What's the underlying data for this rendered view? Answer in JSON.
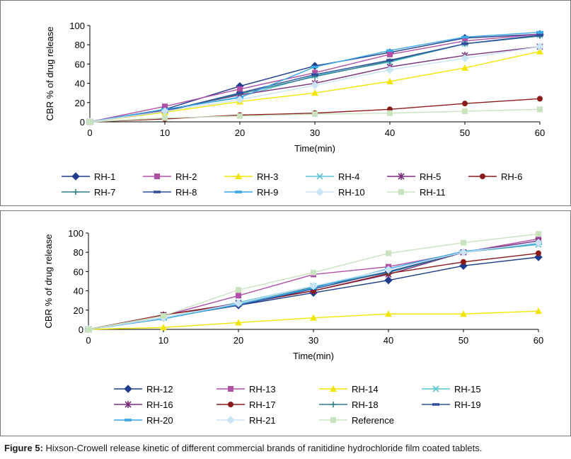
{
  "caption": {
    "label": "Figure 5:",
    "text": " Hixson-Crowell release kinetic of different commercial brands of ranitidine hydrochloride film coated tablets."
  },
  "chart_data": [
    {
      "type": "line",
      "title": "",
      "xlabel": "Time(min)",
      "ylabel": "CBR % of drug release",
      "x": [
        0,
        10,
        20,
        30,
        40,
        50,
        60
      ],
      "xticks": [
        "0",
        "10",
        "20",
        "30",
        "40",
        "50",
        "60"
      ],
      "yticks": [
        "0",
        "20",
        "40",
        "60",
        "80",
        "100"
      ],
      "xlim": [
        0,
        60
      ],
      "ylim": [
        0,
        100
      ],
      "grid": false,
      "legend": "bottom",
      "series": [
        {
          "name": "RH-1",
          "color": "#1f3c8c",
          "marker": "diamond",
          "values": [
            0,
            13,
            37,
            58,
            72,
            87,
            91
          ]
        },
        {
          "name": "RH-2",
          "color": "#b04fa6",
          "marker": "square",
          "values": [
            0,
            16,
            34,
            51,
            70,
            84,
            91
          ]
        },
        {
          "name": "RH-3",
          "color": "#f2e600",
          "marker": "triangle",
          "values": [
            0,
            10,
            21,
            30,
            42,
            56,
            73
          ]
        },
        {
          "name": "RH-4",
          "color": "#5fc3d6",
          "marker": "x",
          "values": [
            0,
            12,
            26,
            48,
            62,
            81,
            90
          ]
        },
        {
          "name": "RH-5",
          "color": "#7a2f7f",
          "marker": "star",
          "values": [
            0,
            12,
            28,
            40,
            57,
            69,
            78
          ]
        },
        {
          "name": "RH-6",
          "color": "#8b1a1a",
          "marker": "circle",
          "values": [
            0,
            3,
            7,
            9,
            13,
            19,
            24
          ]
        },
        {
          "name": "RH-7",
          "color": "#2d7f8a",
          "marker": "plus",
          "values": [
            0,
            11,
            29,
            47,
            63,
            81,
            89
          ]
        },
        {
          "name": "RH-8",
          "color": "#2f4f9c",
          "marker": "dash",
          "values": [
            0,
            11,
            30,
            49,
            64,
            81,
            90
          ]
        },
        {
          "name": "RH-9",
          "color": "#3aa7e8",
          "marker": "dash",
          "values": [
            0,
            13,
            25,
            57,
            74,
            88,
            93
          ]
        },
        {
          "name": "RH-10",
          "color": "#c9e4f5",
          "marker": "diamond",
          "values": [
            0,
            11,
            23,
            38,
            54,
            66,
            78
          ]
        },
        {
          "name": "RH-11",
          "color": "#c9e3bf",
          "marker": "square",
          "values": [
            0,
            4,
            6,
            8,
            9,
            11,
            13
          ]
        }
      ]
    },
    {
      "type": "line",
      "title": "",
      "xlabel": "Time(min)",
      "ylabel": "CBR % of drug release",
      "x": [
        0,
        10,
        20,
        30,
        40,
        50,
        60
      ],
      "xticks": [
        "0",
        "10",
        "20",
        "30",
        "40",
        "50",
        "60"
      ],
      "yticks": [
        "0",
        "20",
        "40",
        "60",
        "80",
        "100"
      ],
      "xlim": [
        0,
        60
      ],
      "ylim": [
        0,
        100
      ],
      "grid": false,
      "legend": "bottom",
      "series": [
        {
          "name": "RH-12",
          "color": "#1f3c8c",
          "marker": "diamond",
          "values": [
            0,
            12,
            25,
            38,
            51,
            66,
            75
          ]
        },
        {
          "name": "RH-13",
          "color": "#b04fa6",
          "marker": "square",
          "values": [
            0,
            14,
            35,
            57,
            65,
            80,
            94
          ]
        },
        {
          "name": "RH-14",
          "color": "#f2e600",
          "marker": "triangle",
          "values": [
            0,
            2,
            7,
            12,
            16,
            16,
            19
          ]
        },
        {
          "name": "RH-15",
          "color": "#5fc3d6",
          "marker": "x",
          "values": [
            0,
            12,
            28,
            45,
            60,
            80,
            88
          ]
        },
        {
          "name": "RH-16",
          "color": "#7a2f7f",
          "marker": "star",
          "values": [
            0,
            15,
            27,
            40,
            57,
            80,
            92
          ]
        },
        {
          "name": "RH-17",
          "color": "#8b1a1a",
          "marker": "circle",
          "values": [
            0,
            15,
            26,
            40,
            58,
            70,
            79
          ]
        },
        {
          "name": "RH-18",
          "color": "#2d7f8a",
          "marker": "plus",
          "values": [
            0,
            11,
            26,
            44,
            59,
            80,
            89
          ]
        },
        {
          "name": "RH-19",
          "color": "#2f4f9c",
          "marker": "dash",
          "values": [
            0,
            12,
            25,
            42,
            60,
            80,
            90
          ]
        },
        {
          "name": "RH-20",
          "color": "#3aa7e8",
          "marker": "dash",
          "values": [
            0,
            11,
            26,
            43,
            63,
            81,
            89
          ]
        },
        {
          "name": "RH-21",
          "color": "#c9e4f5",
          "marker": "diamond",
          "values": [
            0,
            12,
            27,
            45,
            62,
            80,
            90
          ]
        },
        {
          "name": "Reference",
          "color": "#c9e3bf",
          "marker": "square",
          "values": [
            0,
            14,
            41,
            59,
            79,
            90,
            99
          ]
        }
      ]
    }
  ]
}
